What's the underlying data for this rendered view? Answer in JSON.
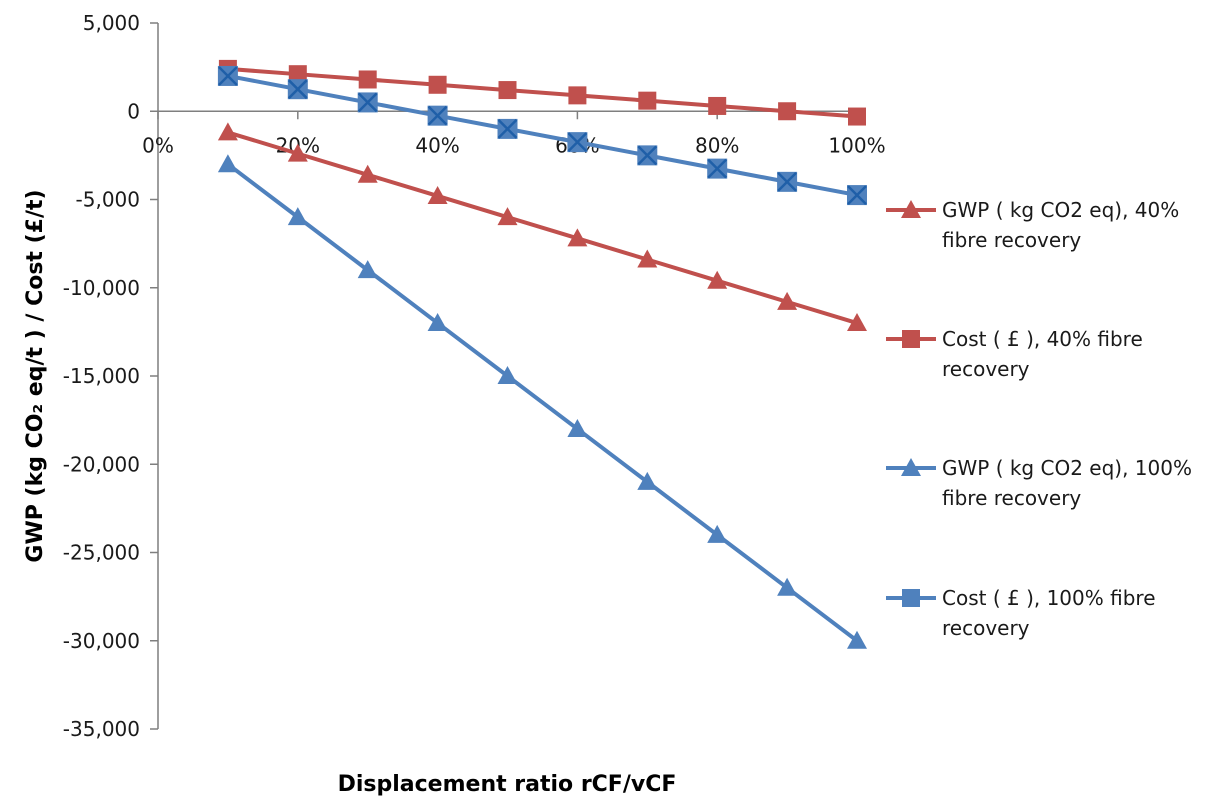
{
  "chart_data": {
    "type": "line",
    "title": "",
    "xlabel": "Displacement ratio rCF/vCF",
    "ylabel": "GWP (kg CO₂ eq/t ) / Cost (£/t)",
    "x": [
      10,
      20,
      30,
      40,
      50,
      60,
      70,
      80,
      90,
      100
    ],
    "xlim": [
      0,
      100
    ],
    "ylim": [
      -35000,
      5000
    ],
    "x_ticks": [
      0,
      20,
      40,
      60,
      80,
      100
    ],
    "x_tick_labels": [
      "0%",
      "20%",
      "40%",
      "60%",
      "80%",
      "100%"
    ],
    "y_ticks": [
      5000,
      0,
      -5000,
      -10000,
      -15000,
      -20000,
      -25000,
      -30000,
      -35000
    ],
    "y_tick_labels": [
      "5,000",
      "0",
      "-5,000",
      "-10,000",
      "-15,000",
      "-20,000",
      "-25,000",
      "-30,000",
      "-35,000"
    ],
    "grid": false,
    "legend_position": "right",
    "series": [
      {
        "name": "GWP ( kg CO2 eq), 40% fibre recovery",
        "legend_lines": [
          "GWP ( kg CO2 eq), 40%",
          "fibre recovery"
        ],
        "marker": "triangle",
        "color": "#c0504d",
        "values": [
          -1200,
          -2400,
          -3600,
          -4800,
          -6000,
          -7200,
          -8400,
          -9600,
          -10800,
          -12000
        ]
      },
      {
        "name": "Cost  ( £ ), 40% fibre recovery",
        "legend_lines": [
          "Cost  ( £ ), 40% fibre",
          "recovery"
        ],
        "marker": "square",
        "color": "#c0504d",
        "values": [
          2400,
          2100,
          1800,
          1500,
          1200,
          900,
          600,
          300,
          0,
          -300
        ]
      },
      {
        "name": "GWP ( kg CO2 eq), 100% fibre recovery",
        "legend_lines": [
          "GWP ( kg CO2 eq), 100%",
          "fibre recovery"
        ],
        "marker": "triangle",
        "color": "#4f81bd",
        "values": [
          -3000,
          -6000,
          -9000,
          -12000,
          -15000,
          -18000,
          -21000,
          -24000,
          -27000,
          -30000
        ]
      },
      {
        "name": "Cost  ( £ ), 100% fibre recovery",
        "legend_lines": [
          "Cost  ( £ ), 100% fibre",
          "recovery"
        ],
        "marker": "square-x",
        "color": "#4f81bd",
        "values": [
          2000,
          1250,
          500,
          -250,
          -1000,
          -1750,
          -2500,
          -3250,
          -4000,
          -4750
        ]
      }
    ]
  }
}
